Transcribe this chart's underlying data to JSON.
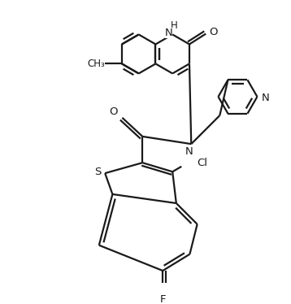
{
  "background_color": "#ffffff",
  "line_color": "#1a1a1a",
  "line_width": 1.6,
  "figsize": [
    3.58,
    3.74
  ],
  "dpi": 100,
  "xlim": [
    0,
    358
  ],
  "ylim": [
    0,
    374
  ]
}
